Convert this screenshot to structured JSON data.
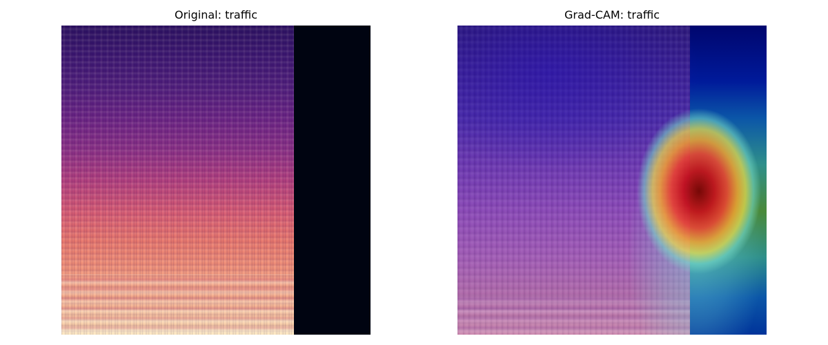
{
  "figure": {
    "left_panel": {
      "title": "Original: traffic"
    },
    "right_panel": {
      "title": "Grad-CAM: traffic"
    }
  },
  "colors": {
    "background": "#ffffff",
    "spectrogram_padding": "#000411",
    "heat_peak": "#780000"
  }
}
